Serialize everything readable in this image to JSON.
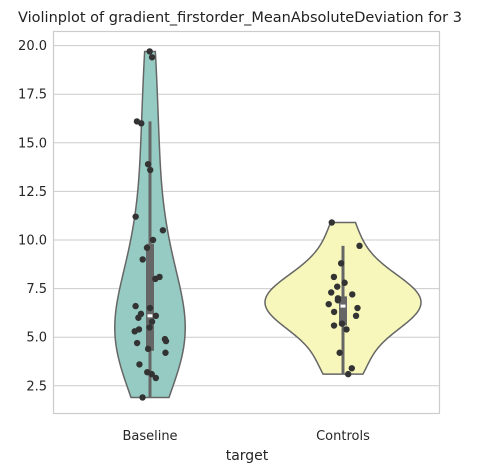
{
  "chart_data": {
    "type": "violin",
    "title": "Violinplot of gradient_firstorder_MeanAbsoluteDeviation for 3",
    "xlabel": "target",
    "ylabel": "",
    "ylim": [
      1.1,
      20.7
    ],
    "yticks": [
      2.5,
      5.0,
      7.5,
      10.0,
      12.5,
      15.0,
      17.5,
      20.0
    ],
    "ytick_labels": [
      "2.5",
      "5.0",
      "7.5",
      "10.0",
      "12.5",
      "15.0",
      "17.5",
      "20.0"
    ],
    "grid": true,
    "categories": [
      "Baseline",
      "Controls"
    ],
    "series": [
      {
        "category": "Baseline",
        "color": "#95cbc2",
        "violin_range": [
          1.9,
          19.7
        ],
        "box": {
          "q1": 4.3,
          "median": 6.1,
          "q3": 9.8,
          "whisker_low": 1.9,
          "whisker_high": 16.1
        },
        "points": [
          19.7,
          19.4,
          16.1,
          16.0,
          13.9,
          13.6,
          11.2,
          10.5,
          10.0,
          9.6,
          9.0,
          8.1,
          8.0,
          6.6,
          6.5,
          6.2,
          6.1,
          6.0,
          5.8,
          5.5,
          5.4,
          5.3,
          4.9,
          4.8,
          4.7,
          4.4,
          4.2,
          3.6,
          3.2,
          3.1,
          2.9,
          1.9
        ]
      },
      {
        "category": "Controls",
        "color": "#f7f7bb",
        "violin_range": [
          3.1,
          10.9
        ],
        "box": {
          "q1": 5.6,
          "median": 6.6,
          "q3": 7.1,
          "whisker_low": 3.1,
          "whisker_high": 9.7
        },
        "points": [
          10.9,
          9.7,
          8.8,
          8.1,
          7.8,
          7.6,
          7.3,
          7.2,
          7.0,
          6.9,
          6.7,
          6.5,
          6.3,
          6.1,
          5.7,
          5.6,
          5.4,
          4.2,
          3.4,
          3.1
        ]
      }
    ]
  }
}
